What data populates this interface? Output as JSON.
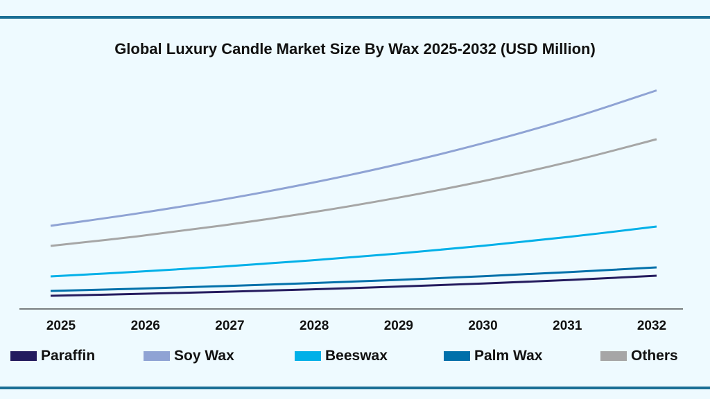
{
  "chart_data": {
    "type": "line",
    "title": "Global Luxury Candle Market Size By Wax 2025-2032 (USD Million)",
    "xlabel": "",
    "ylabel": "",
    "x": [
      "2025",
      "2026",
      "2027",
      "2028",
      "2029",
      "2030",
      "2031",
      "2032"
    ],
    "ylim": [
      0,
      330
    ],
    "grid": false,
    "legend_placement": "bottom",
    "series": [
      {
        "name": "Paraffin",
        "color": "#241b5e",
        "values": [
          19,
          21.7,
          24.7,
          28.2,
          32.2,
          36.7,
          41.9,
          48
        ]
      },
      {
        "name": "Soy Wax",
        "color": "#8fa3d4",
        "values": [
          120,
          137.8,
          158.2,
          181.6,
          208.5,
          239.4,
          274.8,
          315.5
        ]
      },
      {
        "name": "Beeswax",
        "color": "#00b0e8",
        "values": [
          47,
          53.7,
          61.3,
          70,
          79.9,
          91.2,
          104.2,
          119
        ]
      },
      {
        "name": "Palm Wax",
        "color": "#0070aa",
        "values": [
          26,
          29.3,
          33,
          37.2,
          41.9,
          47.3,
          53.3,
          60
        ]
      },
      {
        "name": "Others",
        "color": "#a6a6a6",
        "values": [
          91,
          104.8,
          120.8,
          139.1,
          160.3,
          184.6,
          212.7,
          245
        ]
      }
    ]
  }
}
